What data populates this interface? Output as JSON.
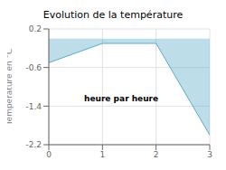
{
  "chart_data": {
    "type": "area",
    "title": "Evolution de la température",
    "ylabel": "Température en °C",
    "annotations": [
      "heure par heure"
    ],
    "x": [
      0,
      1,
      2,
      3
    ],
    "values": [
      -0.5,
      -0.1,
      -0.1,
      -2.0
    ],
    "color": "#5aaac8",
    "xlim": [
      0,
      3
    ],
    "ylim": [
      -2.2,
      0.2
    ],
    "xticks": [
      0,
      1,
      2,
      3
    ],
    "yticks": [
      -2.2,
      -1.4,
      -0.6,
      0.2
    ],
    "grid": true
  }
}
